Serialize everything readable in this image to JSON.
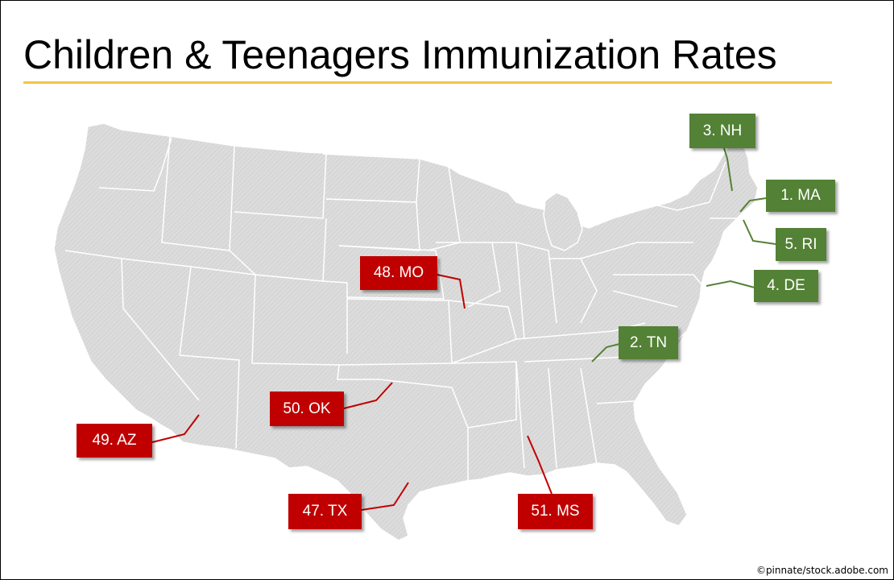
{
  "title": "Children & Teenagers Immunization Rates",
  "credit": "©pinnate/stock.adobe.com",
  "colors": {
    "best": "#538135",
    "worst": "#c00000",
    "title_rule": "#f4c542",
    "map_fill": "#dcdcdc",
    "state_border": "#ffffff"
  },
  "labels": {
    "nh": "3. NH",
    "ma": "1. MA",
    "ri": "5. RI",
    "de": "4. DE",
    "tn": "2. TN",
    "mo": "48. MO",
    "ok": "50. OK",
    "az": "49. AZ",
    "tx": "47. TX",
    "ms": "51. MS"
  }
}
